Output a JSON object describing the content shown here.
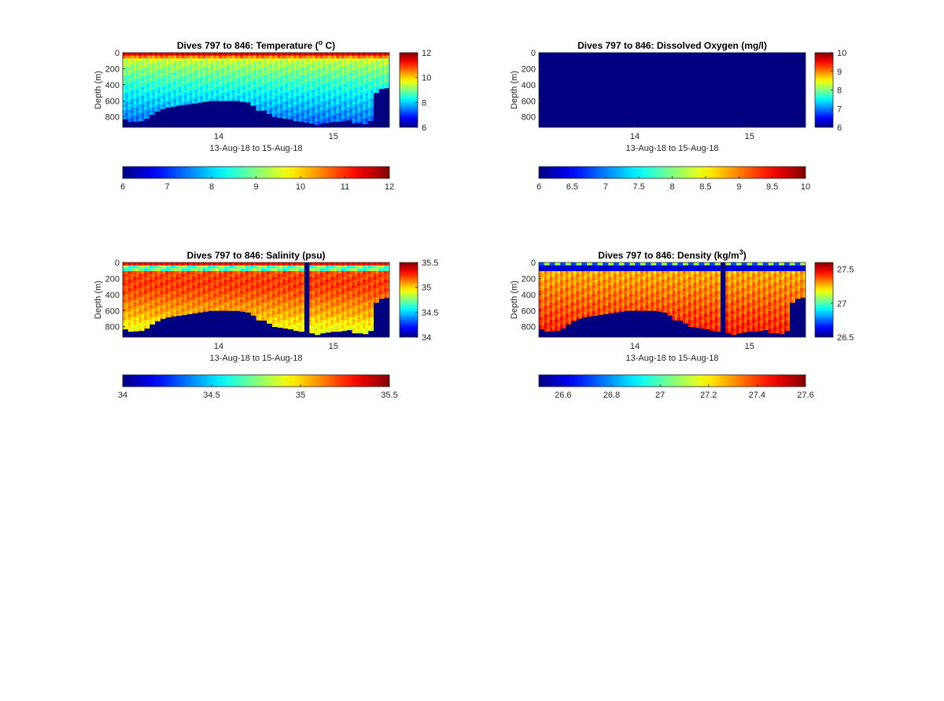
{
  "figure": {
    "date_label": "13-Aug-18 to 15-Aug-18"
  },
  "chart_data": [
    {
      "type": "heatmap",
      "title_text": "Dives 797 to 846: Temperature (",
      "title_sup": "o",
      "title_tail": " C)",
      "variable": "temperature",
      "xlabel": "13-Aug-18 to 15-Aug-18",
      "ylabel": "Depth (m)",
      "x_ticks": [
        "14",
        "15"
      ],
      "y_ticks": [
        "0",
        "200",
        "400",
        "600",
        "800"
      ],
      "ylim": [
        0,
        930
      ],
      "y_reversed": true,
      "dive_range": [
        797,
        846
      ],
      "colormap": "jet",
      "clim": [
        6,
        12
      ],
      "colorbar_ticks": [
        "6",
        "8",
        "10",
        "12"
      ],
      "h_colorbar_ticks": [
        "6",
        "7",
        "8",
        "9",
        "10",
        "11",
        "12"
      ],
      "bottom_depth_m": [
        830,
        860,
        855,
        850,
        820,
        770,
        730,
        700,
        680,
        670,
        660,
        650,
        640,
        630,
        620,
        610,
        600,
        600,
        600,
        600,
        600,
        600,
        610,
        620,
        660,
        720,
        720,
        760,
        800,
        810,
        820,
        830,
        850,
        860,
        870,
        880,
        900,
        880,
        870,
        860,
        860,
        850,
        840,
        880,
        880,
        890,
        850,
        500,
        450,
        440
      ]
    },
    {
      "type": "heatmap",
      "title_text": "Dives 797 to 846: Dissolved Oxygen (mg/l)",
      "variable": "oxygen",
      "xlabel": "13-Aug-18 to 15-Aug-18",
      "ylabel": "Depth (m)",
      "x_ticks": [
        "14",
        "15"
      ],
      "y_ticks": [
        "0",
        "200",
        "400",
        "600",
        "800"
      ],
      "ylim": [
        0,
        930
      ],
      "y_reversed": true,
      "colormap": "jet",
      "clim": [
        6,
        10
      ],
      "colorbar_ticks": [
        "6",
        "7",
        "8",
        "9",
        "10"
      ],
      "h_colorbar_ticks": [
        "6",
        "6.5",
        "7",
        "7.5",
        "8",
        "8.5",
        "9",
        "9.5",
        "10"
      ],
      "uniform_value": 6
    },
    {
      "type": "heatmap",
      "title_text": "Dives 797 to 846: Salinity (psu)",
      "variable": "salinity",
      "xlabel": "13-Aug-18 to 15-Aug-18",
      "ylabel": "Depth (m)",
      "x_ticks": [
        "14",
        "15"
      ],
      "y_ticks": [
        "0",
        "200",
        "400",
        "600",
        "800"
      ],
      "ylim": [
        0,
        930
      ],
      "y_reversed": true,
      "colormap": "jet",
      "clim": [
        34,
        35.5
      ],
      "colorbar_ticks": [
        "34",
        "34.5",
        "35",
        "35.5"
      ],
      "h_colorbar_ticks": [
        "34",
        "34.5",
        "35",
        "35.5"
      ],
      "bottom_depth_m": [
        830,
        860,
        855,
        850,
        820,
        770,
        730,
        700,
        680,
        670,
        660,
        650,
        640,
        630,
        620,
        610,
        600,
        600,
        600,
        600,
        600,
        600,
        610,
        620,
        660,
        720,
        720,
        760,
        800,
        810,
        820,
        830,
        850,
        860,
        870,
        880,
        900,
        880,
        870,
        860,
        860,
        850,
        840,
        880,
        880,
        890,
        850,
        500,
        450,
        440
      ],
      "gap_dive_index": 34
    },
    {
      "type": "heatmap",
      "title_text": "Dives 797 to 846: Density (kg/m",
      "title_sup": "3",
      "title_tail": ")",
      "variable": "density",
      "xlabel": "13-Aug-18 to 15-Aug-18",
      "ylabel": "Depth (m)",
      "x_ticks": [
        "14",
        "15"
      ],
      "y_ticks": [
        "0",
        "200",
        "400",
        "600",
        "800"
      ],
      "ylim": [
        0,
        930
      ],
      "y_reversed": true,
      "colormap": "jet",
      "clim": [
        26.5,
        27.6
      ],
      "colorbar_ticks": [
        "26.5",
        "27",
        "27.5"
      ],
      "h_colorbar_ticks": [
        "26.6",
        "26.8",
        "27",
        "27.2",
        "27.4",
        "27.6"
      ],
      "bottom_depth_m": [
        830,
        860,
        855,
        850,
        820,
        770,
        730,
        700,
        680,
        670,
        660,
        650,
        640,
        630,
        620,
        610,
        600,
        600,
        600,
        600,
        600,
        600,
        610,
        620,
        660,
        720,
        720,
        760,
        800,
        810,
        820,
        830,
        850,
        860,
        870,
        880,
        900,
        880,
        870,
        860,
        860,
        850,
        840,
        880,
        880,
        890,
        850,
        500,
        450,
        440
      ],
      "gap_dive_index": 34
    }
  ]
}
